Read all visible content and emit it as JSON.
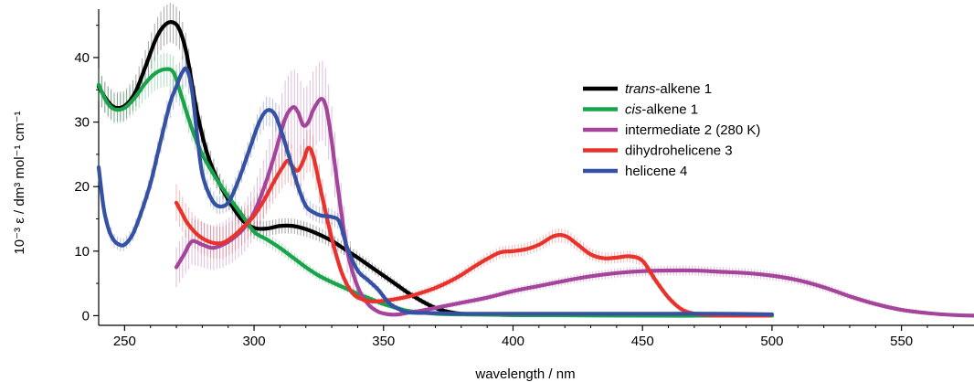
{
  "chart_data": {
    "type": "line",
    "xlabel": "wavelength / nm",
    "ylabel": "10⁻³ ε / dm³ mol⁻¹ cm⁻¹",
    "xlim": [
      240,
      578
    ],
    "ylim": [
      -1.5,
      47.5
    ],
    "x_ticks": [
      250,
      300,
      350,
      400,
      450,
      500,
      550
    ],
    "y_ticks": [
      0,
      10,
      20,
      30,
      40
    ],
    "grid": false,
    "legend_position": "top-right",
    "series": [
      {
        "name": "trans-alkene 1",
        "name_italic": "trans",
        "name_rest": "-alkene 1",
        "color": "#000000",
        "x": [
          240,
          243,
          246,
          250,
          254,
          258,
          262,
          265,
          268,
          271,
          274,
          278,
          282,
          286,
          290,
          295,
          300,
          305,
          310,
          315,
          320,
          325,
          330,
          335,
          340,
          345,
          350,
          355,
          360,
          365,
          370,
          375,
          380,
          390,
          400,
          420,
          440,
          460,
          480,
          500
        ],
        "y": [
          35.5,
          33.5,
          32.3,
          32.5,
          34.5,
          38.5,
          42.8,
          44.8,
          45.5,
          44.5,
          40.5,
          31.5,
          25.0,
          21.0,
          18.0,
          15.0,
          13.6,
          13.5,
          13.9,
          13.9,
          13.4,
          12.6,
          11.6,
          10.3,
          9.0,
          7.6,
          6.2,
          4.8,
          3.4,
          2.2,
          1.2,
          0.6,
          0.3,
          0.2,
          0.1,
          0.1,
          0.1,
          0.1,
          0.1,
          0.0
        ]
      },
      {
        "name": "cis-alkene 1",
        "name_italic": "cis",
        "name_rest": "-alkene 1",
        "color": "#19a34a",
        "x": [
          240,
          243,
          246,
          250,
          254,
          258,
          262,
          266,
          269,
          272,
          276,
          280,
          285,
          290,
          295,
          300,
          305,
          310,
          315,
          320,
          325,
          330,
          335,
          340,
          345,
          350,
          355,
          360,
          370,
          380,
          400,
          450,
          500
        ],
        "y": [
          35.8,
          33.2,
          32.0,
          32.2,
          33.8,
          36.0,
          37.6,
          38.2,
          37.6,
          34.0,
          29.0,
          25.0,
          21.5,
          18.5,
          15.8,
          13.0,
          11.8,
          10.5,
          9.0,
          7.5,
          6.2,
          5.2,
          4.3,
          3.4,
          2.6,
          1.8,
          1.2,
          0.7,
          0.3,
          0.2,
          0.1,
          0.0,
          0.0
        ]
      },
      {
        "name": "intermediate 2 (280 K)",
        "color": "#a4449a",
        "x": [
          270,
          273,
          276,
          280,
          284,
          288,
          292,
          296,
          300,
          304,
          308,
          312,
          315,
          317,
          319,
          321,
          323,
          326,
          328,
          330,
          333,
          336,
          340,
          344,
          348,
          352,
          356,
          360,
          365,
          370,
          380,
          390,
          400,
          410,
          420,
          430,
          440,
          450,
          460,
          470,
          480,
          490,
          500,
          510,
          520,
          530,
          540,
          550,
          560,
          570,
          578
        ],
        "y": [
          7.5,
          9.5,
          11.5,
          11.0,
          10.5,
          11.0,
          12.0,
          13.5,
          16.0,
          20.0,
          25.0,
          30.5,
          32.3,
          31.5,
          29.5,
          30.0,
          32.0,
          33.6,
          32.0,
          27.0,
          18.0,
          10.0,
          4.5,
          1.8,
          0.6,
          0.2,
          0.2,
          0.5,
          0.8,
          1.2,
          2.0,
          2.8,
          3.8,
          4.6,
          5.4,
          6.1,
          6.6,
          6.9,
          7.0,
          7.0,
          6.8,
          6.6,
          6.2,
          5.5,
          4.4,
          3.0,
          1.8,
          0.9,
          0.4,
          0.1,
          0.0
        ]
      },
      {
        "name": "dihydrohelicene 3",
        "color": "#e8332d",
        "x": [
          270,
          272,
          274,
          277,
          280,
          284,
          288,
          292,
          296,
          300,
          304,
          308,
          311,
          313,
          315,
          317,
          319,
          321,
          323,
          326,
          330,
          334,
          338,
          342,
          346,
          350,
          355,
          360,
          365,
          370,
          375,
          380,
          385,
          390,
          395,
          400,
          405,
          410,
          415,
          418,
          421,
          425,
          430,
          435,
          440,
          445,
          450,
          455,
          460,
          465,
          470,
          475,
          480,
          490,
          499
        ],
        "y": [
          17.5,
          16.0,
          14.5,
          13.0,
          12.0,
          11.3,
          11.3,
          12.3,
          13.8,
          15.5,
          18.0,
          21.0,
          23.0,
          24.0,
          23.0,
          22.5,
          24.0,
          26.0,
          24.5,
          19.0,
          12.0,
          6.5,
          3.5,
          2.5,
          2.2,
          2.3,
          2.6,
          3.0,
          3.6,
          4.3,
          5.2,
          6.3,
          7.6,
          8.8,
          9.8,
          10.0,
          10.3,
          11.0,
          12.2,
          12.5,
          12.2,
          11.0,
          9.5,
          8.9,
          9.0,
          9.2,
          8.5,
          5.5,
          2.8,
          1.0,
          0.3,
          0.1,
          0.0,
          0.0,
          0.0
        ]
      },
      {
        "name": "helicene 4",
        "color": "#3451a3",
        "x": [
          240,
          242,
          244,
          246,
          248,
          250,
          253,
          256,
          260,
          263,
          266,
          268,
          270,
          272,
          274,
          276,
          278,
          280,
          283,
          286,
          290,
          294,
          298,
          302,
          305,
          308,
          311,
          314,
          317,
          320,
          323,
          326,
          330,
          333,
          336,
          340,
          344,
          348,
          352,
          356,
          360,
          370,
          380,
          400,
          420,
          440,
          460,
          480,
          500
        ],
        "y": [
          23.0,
          16.5,
          13.2,
          11.6,
          11.0,
          11.0,
          12.5,
          15.5,
          20.5,
          25.5,
          30.5,
          33.5,
          35.5,
          37.5,
          38.2,
          35.0,
          28.0,
          22.0,
          18.5,
          17.0,
          17.5,
          21.0,
          25.5,
          30.0,
          31.8,
          31.2,
          28.0,
          24.0,
          20.0,
          17.0,
          16.0,
          15.5,
          15.3,
          14.5,
          10.5,
          7.0,
          5.5,
          4.0,
          2.0,
          1.0,
          0.5,
          0.4,
          0.3,
          0.3,
          0.3,
          0.3,
          0.3,
          0.3,
          0.2
        ]
      }
    ]
  }
}
